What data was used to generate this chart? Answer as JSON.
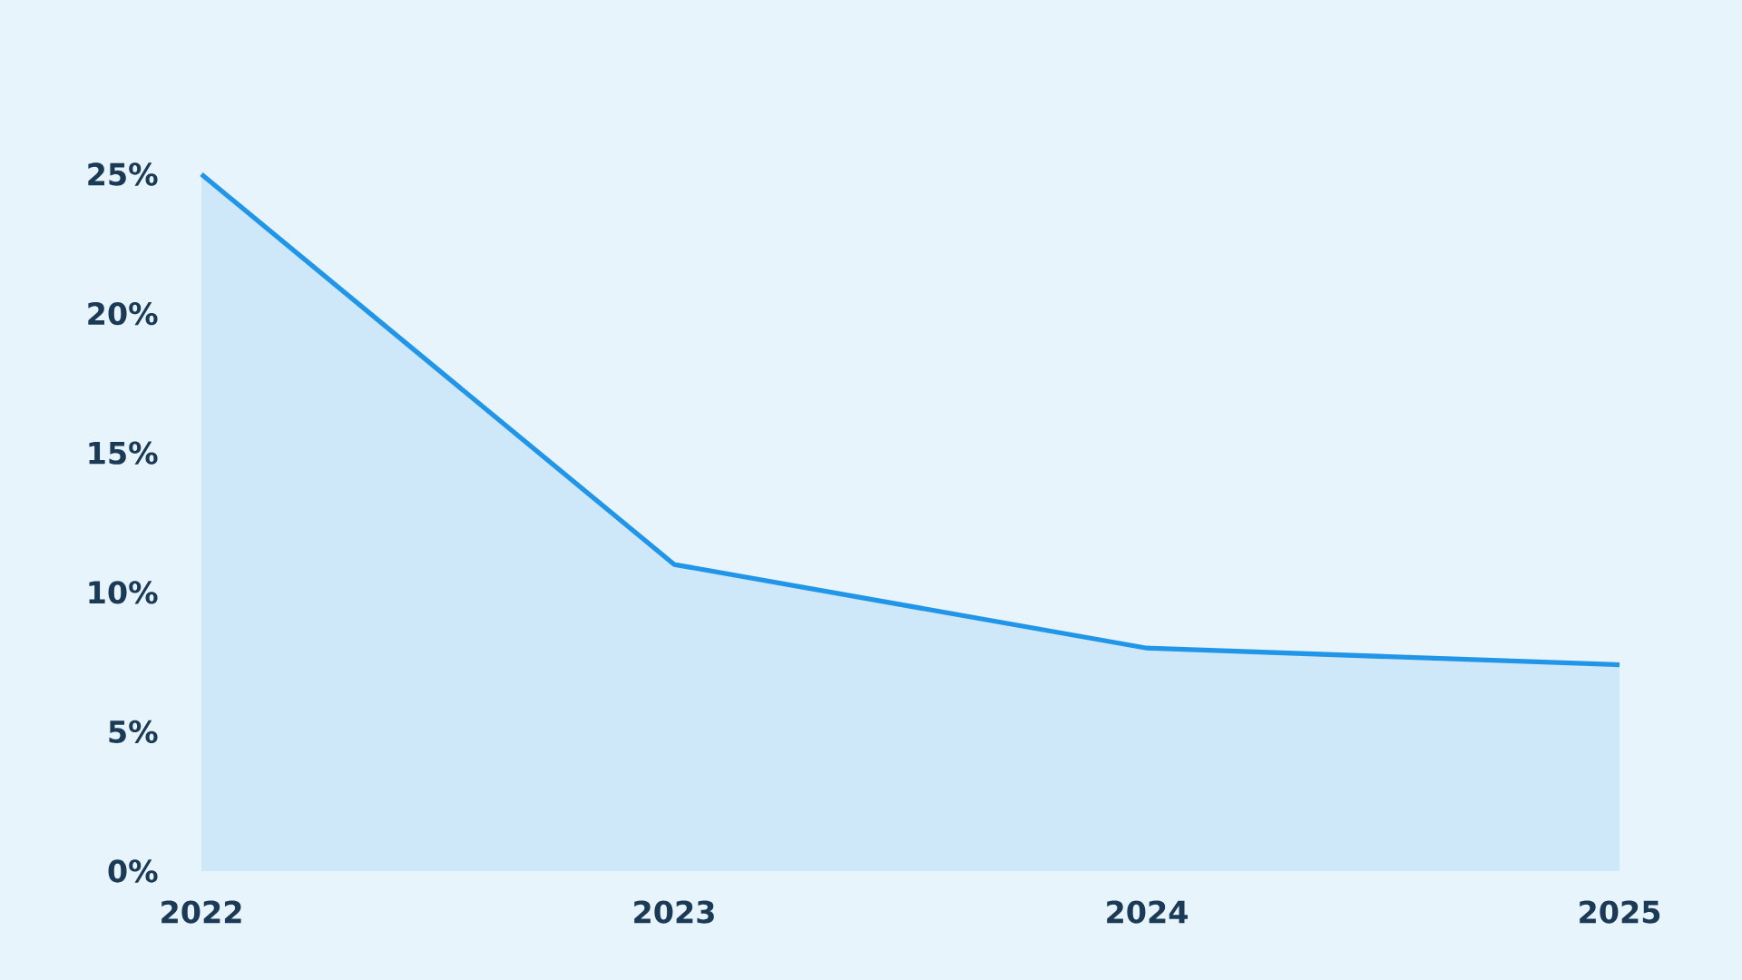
{
  "chart_data": {
    "type": "area",
    "categories": [
      "2022",
      "2023",
      "2024",
      "2025"
    ],
    "series": [
      {
        "color": "#2196e8",
        "values": [
          25,
          11,
          8,
          7.4
        ]
      }
    ],
    "ylim": [
      0,
      25
    ],
    "yticks": [
      {
        "value": 0,
        "label": "0%"
      },
      {
        "value": 5,
        "label": "5%"
      },
      {
        "value": 10,
        "label": "10%"
      },
      {
        "value": 15,
        "label": "15%"
      },
      {
        "value": 20,
        "label": "20%"
      },
      {
        "value": 25,
        "label": "25%"
      }
    ],
    "grid": false,
    "marker": "none",
    "line_style": "solid"
  }
}
